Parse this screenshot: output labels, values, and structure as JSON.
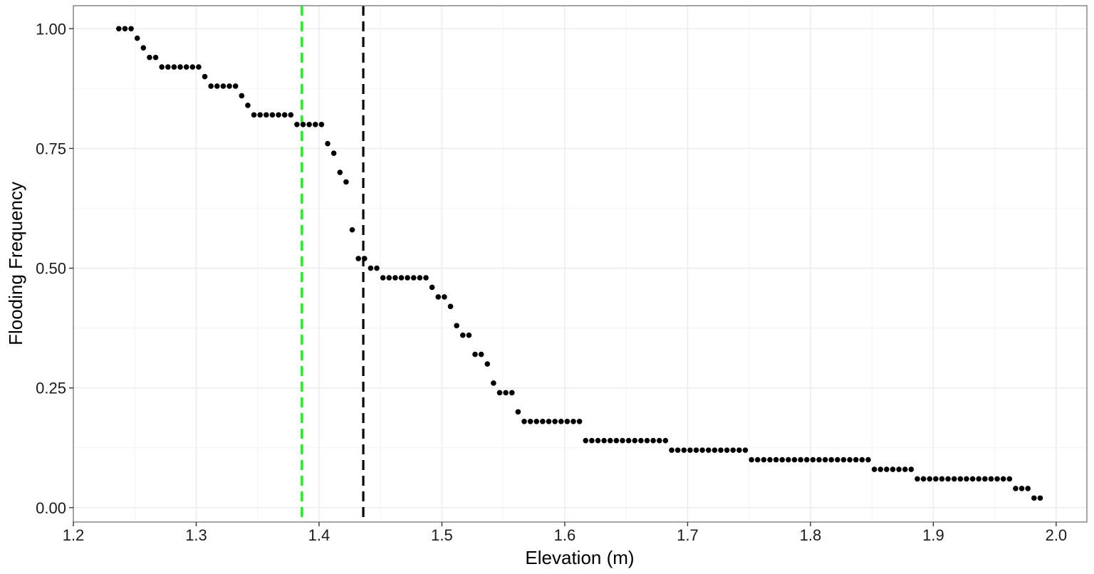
{
  "chart_data": {
    "type": "scatter",
    "xlabel": "Elevation (m)",
    "ylabel": "Flooding Frequency",
    "xlim": [
      1.2,
      2.025
    ],
    "ylim": [
      -0.03,
      1.048
    ],
    "x_ticks": [
      1.2,
      1.3,
      1.4,
      1.5,
      1.6,
      1.7,
      1.8,
      1.9,
      2.0
    ],
    "x_tick_labels": [
      "1.2",
      "1.3",
      "1.4",
      "1.5",
      "1.6",
      "1.7",
      "1.8",
      "1.9",
      "2.0"
    ],
    "y_ticks": [
      0,
      0.25,
      0.5,
      0.75,
      1
    ],
    "y_tick_labels": [
      "0.00",
      "0.25",
      "0.50",
      "0.75",
      "1.00"
    ],
    "grid": true,
    "theme": "ggplot2 theme_bw",
    "point_color": "#000000",
    "vlines": [
      {
        "x": 1.386,
        "color": "#00ff00",
        "linetype": "dashed"
      },
      {
        "x": 1.436,
        "color": "#000000",
        "linetype": "dashed"
      }
    ],
    "points": [
      [
        1.237,
        1.0
      ],
      [
        1.242,
        1.0
      ],
      [
        1.247,
        1.0
      ],
      [
        1.252,
        0.98
      ],
      [
        1.257,
        0.96
      ],
      [
        1.262,
        0.94
      ],
      [
        1.267,
        0.94
      ],
      [
        1.272,
        0.92
      ],
      [
        1.277,
        0.92
      ],
      [
        1.282,
        0.92
      ],
      [
        1.287,
        0.92
      ],
      [
        1.292,
        0.92
      ],
      [
        1.297,
        0.92
      ],
      [
        1.302,
        0.92
      ],
      [
        1.307,
        0.9
      ],
      [
        1.312,
        0.88
      ],
      [
        1.317,
        0.88
      ],
      [
        1.322,
        0.88
      ],
      [
        1.327,
        0.88
      ],
      [
        1.332,
        0.88
      ],
      [
        1.337,
        0.86
      ],
      [
        1.342,
        0.84
      ],
      [
        1.347,
        0.82
      ],
      [
        1.352,
        0.82
      ],
      [
        1.357,
        0.82
      ],
      [
        1.362,
        0.82
      ],
      [
        1.367,
        0.82
      ],
      [
        1.372,
        0.82
      ],
      [
        1.377,
        0.82
      ],
      [
        1.382,
        0.8
      ],
      [
        1.387,
        0.8
      ],
      [
        1.392,
        0.8
      ],
      [
        1.397,
        0.8
      ],
      [
        1.402,
        0.8
      ],
      [
        1.407,
        0.76
      ],
      [
        1.412,
        0.74
      ],
      [
        1.417,
        0.7
      ],
      [
        1.422,
        0.68
      ],
      [
        1.427,
        0.58
      ],
      [
        1.432,
        0.52
      ],
      [
        1.437,
        0.52
      ],
      [
        1.442,
        0.5
      ],
      [
        1.447,
        0.5
      ],
      [
        1.452,
        0.48
      ],
      [
        1.457,
        0.48
      ],
      [
        1.462,
        0.48
      ],
      [
        1.467,
        0.48
      ],
      [
        1.472,
        0.48
      ],
      [
        1.477,
        0.48
      ],
      [
        1.482,
        0.48
      ],
      [
        1.487,
        0.48
      ],
      [
        1.492,
        0.46
      ],
      [
        1.497,
        0.44
      ],
      [
        1.502,
        0.44
      ],
      [
        1.507,
        0.42
      ],
      [
        1.512,
        0.38
      ],
      [
        1.517,
        0.36
      ],
      [
        1.522,
        0.36
      ],
      [
        1.527,
        0.32
      ],
      [
        1.532,
        0.32
      ],
      [
        1.537,
        0.3
      ],
      [
        1.542,
        0.26
      ],
      [
        1.547,
        0.24
      ],
      [
        1.552,
        0.24
      ],
      [
        1.557,
        0.24
      ],
      [
        1.562,
        0.2
      ],
      [
        1.567,
        0.18
      ],
      [
        1.572,
        0.18
      ],
      [
        1.577,
        0.18
      ],
      [
        1.582,
        0.18
      ],
      [
        1.587,
        0.18
      ],
      [
        1.592,
        0.18
      ],
      [
        1.597,
        0.18
      ],
      [
        1.602,
        0.18
      ],
      [
        1.607,
        0.18
      ],
      [
        1.612,
        0.18
      ],
      [
        1.617,
        0.14
      ],
      [
        1.622,
        0.14
      ],
      [
        1.627,
        0.14
      ],
      [
        1.632,
        0.14
      ],
      [
        1.637,
        0.14
      ],
      [
        1.642,
        0.14
      ],
      [
        1.647,
        0.14
      ],
      [
        1.652,
        0.14
      ],
      [
        1.657,
        0.14
      ],
      [
        1.662,
        0.14
      ],
      [
        1.667,
        0.14
      ],
      [
        1.672,
        0.14
      ],
      [
        1.677,
        0.14
      ],
      [
        1.682,
        0.14
      ],
      [
        1.687,
        0.12
      ],
      [
        1.692,
        0.12
      ],
      [
        1.697,
        0.12
      ],
      [
        1.702,
        0.12
      ],
      [
        1.707,
        0.12
      ],
      [
        1.712,
        0.12
      ],
      [
        1.717,
        0.12
      ],
      [
        1.722,
        0.12
      ],
      [
        1.727,
        0.12
      ],
      [
        1.732,
        0.12
      ],
      [
        1.737,
        0.12
      ],
      [
        1.742,
        0.12
      ],
      [
        1.747,
        0.12
      ],
      [
        1.752,
        0.1
      ],
      [
        1.757,
        0.1
      ],
      [
        1.762,
        0.1
      ],
      [
        1.767,
        0.1
      ],
      [
        1.772,
        0.1
      ],
      [
        1.777,
        0.1
      ],
      [
        1.782,
        0.1
      ],
      [
        1.787,
        0.1
      ],
      [
        1.792,
        0.1
      ],
      [
        1.797,
        0.1
      ],
      [
        1.802,
        0.1
      ],
      [
        1.807,
        0.1
      ],
      [
        1.812,
        0.1
      ],
      [
        1.817,
        0.1
      ],
      [
        1.822,
        0.1
      ],
      [
        1.827,
        0.1
      ],
      [
        1.832,
        0.1
      ],
      [
        1.837,
        0.1
      ],
      [
        1.842,
        0.1
      ],
      [
        1.847,
        0.1
      ],
      [
        1.852,
        0.08
      ],
      [
        1.857,
        0.08
      ],
      [
        1.862,
        0.08
      ],
      [
        1.867,
        0.08
      ],
      [
        1.872,
        0.08
      ],
      [
        1.877,
        0.08
      ],
      [
        1.882,
        0.08
      ],
      [
        1.887,
        0.06
      ],
      [
        1.892,
        0.06
      ],
      [
        1.897,
        0.06
      ],
      [
        1.902,
        0.06
      ],
      [
        1.907,
        0.06
      ],
      [
        1.912,
        0.06
      ],
      [
        1.917,
        0.06
      ],
      [
        1.922,
        0.06
      ],
      [
        1.927,
        0.06
      ],
      [
        1.932,
        0.06
      ],
      [
        1.937,
        0.06
      ],
      [
        1.942,
        0.06
      ],
      [
        1.947,
        0.06
      ],
      [
        1.952,
        0.06
      ],
      [
        1.957,
        0.06
      ],
      [
        1.962,
        0.06
      ],
      [
        1.967,
        0.04
      ],
      [
        1.972,
        0.04
      ],
      [
        1.977,
        0.04
      ],
      [
        1.982,
        0.02
      ],
      [
        1.987,
        0.02
      ]
    ]
  }
}
